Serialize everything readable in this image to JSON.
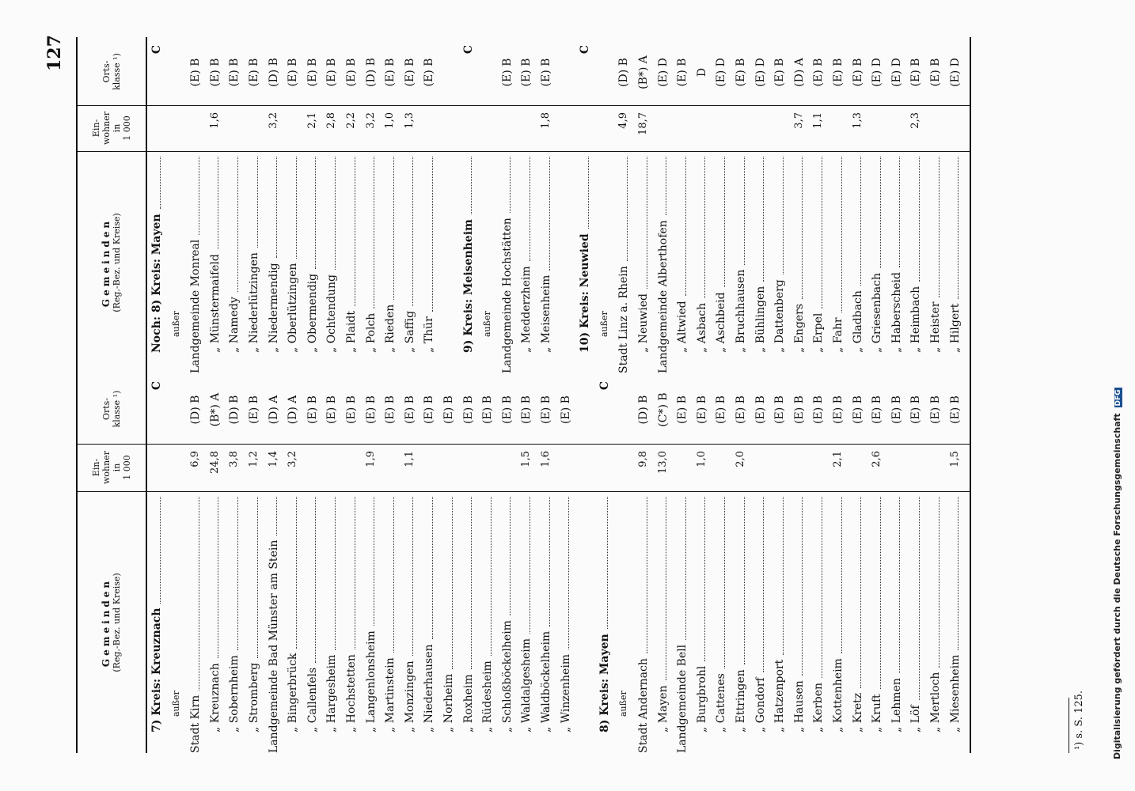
{
  "page_number": "127",
  "header": {
    "gemeinden": "Gemeinden",
    "gemeinden_sub": "(Reg.-Bez. und Kreise)",
    "einwohner": "Ein-\nwohner\nin\n1 000",
    "ortsklasse": "Orts-\nklasse ¹)"
  },
  "left_table": [
    {
      "name": "7) Kreis: Kreuznach",
      "pop": "",
      "klass": "C",
      "style": "kreis"
    },
    {
      "name": "außer",
      "pop": "",
      "klass": "",
      "style": "ausser"
    },
    {
      "name": "Stadt Kirn",
      "pop": "6,9",
      "klass": "(D) B",
      "style": "top"
    },
    {
      "name": "„ Kreuznach",
      "pop": "24,8",
      "klass": "(B*) A",
      "style": "sub"
    },
    {
      "name": "„ Sobernheim",
      "pop": "3,8",
      "klass": "(D) B",
      "style": "sub"
    },
    {
      "name": "„ Stromberg",
      "pop": "1,2",
      "klass": "(E) B",
      "style": "sub"
    },
    {
      "name": "Landgemeinde Bad Münster am Stein",
      "pop": "1,4",
      "klass": "(D) A",
      "style": "top"
    },
    {
      "name": "„ Bingerbrück",
      "pop": "3,2",
      "klass": "(D) A",
      "style": "sub2"
    },
    {
      "name": "„ Callenfels",
      "pop": "",
      "klass": "(E) B",
      "style": "sub2"
    },
    {
      "name": "„ Hargesheim",
      "pop": "",
      "klass": "(E) B",
      "style": "sub2"
    },
    {
      "name": "„ Hochstetten",
      "pop": "",
      "klass": "(E) B",
      "style": "sub2"
    },
    {
      "name": "„ Langenlonsheim",
      "pop": "1,9",
      "klass": "(E) B",
      "style": "sub2"
    },
    {
      "name": "„ Martinstein",
      "pop": "",
      "klass": "(E) B",
      "style": "sub2"
    },
    {
      "name": "„ Monzingen",
      "pop": "1,1",
      "klass": "(E) B",
      "style": "sub2"
    },
    {
      "name": "„ Niederhausen",
      "pop": "",
      "klass": "(E) B",
      "style": "sub2"
    },
    {
      "name": "„ Norheim",
      "pop": "",
      "klass": "(E) B",
      "style": "sub2"
    },
    {
      "name": "„ Roxheim",
      "pop": "",
      "klass": "(E) B",
      "style": "sub2"
    },
    {
      "name": "„ Rüdesheim",
      "pop": "",
      "klass": "(E) B",
      "style": "sub2"
    },
    {
      "name": "„ Schloßböckelheim",
      "pop": "",
      "klass": "(E) B",
      "style": "sub2"
    },
    {
      "name": "„ Waldalgesheim",
      "pop": "1,5",
      "klass": "(E) B",
      "style": "sub2"
    },
    {
      "name": "„ Waldböckelheim",
      "pop": "1,6",
      "klass": "(E) B",
      "style": "sub2"
    },
    {
      "name": "„ Winzenheim",
      "pop": "",
      "klass": "(E) B",
      "style": "sub2"
    },
    {
      "name": "",
      "pop": "",
      "klass": "",
      "style": "blank"
    },
    {
      "name": "8) Kreis: Mayen",
      "pop": "",
      "klass": "C",
      "style": "kreis"
    },
    {
      "name": "außer",
      "pop": "",
      "klass": "",
      "style": "ausser"
    },
    {
      "name": "Stadt Andernach",
      "pop": "9,8",
      "klass": "(D) B",
      "style": "top"
    },
    {
      "name": "„ Mayen",
      "pop": "13,0",
      "klass": "(C*) B",
      "style": "sub"
    },
    {
      "name": "Landgemeinde Bell",
      "pop": "",
      "klass": "(E) B",
      "style": "top"
    },
    {
      "name": "„ Burgbrohl",
      "pop": "1,0",
      "klass": "(E) B",
      "style": "sub2"
    },
    {
      "name": "„ Cattenes",
      "pop": "",
      "klass": "(E) B",
      "style": "sub2"
    },
    {
      "name": "„ Ettringen",
      "pop": "2,0",
      "klass": "(E) B",
      "style": "sub2"
    },
    {
      "name": "„ Gondorf",
      "pop": "",
      "klass": "(E) B",
      "style": "sub2"
    },
    {
      "name": "„ Hatzenport",
      "pop": "",
      "klass": "(E) B",
      "style": "sub2"
    },
    {
      "name": "„ Hausen",
      "pop": "",
      "klass": "(E) B",
      "style": "sub2"
    },
    {
      "name": "„ Kerben",
      "pop": "",
      "klass": "(E) B",
      "style": "sub2"
    },
    {
      "name": "„ Kottenheim",
      "pop": "2,1",
      "klass": "(E) B",
      "style": "sub2"
    },
    {
      "name": "„ Kretz",
      "pop": "",
      "klass": "(E) B",
      "style": "sub2"
    },
    {
      "name": "„ Kruft",
      "pop": "2,6",
      "klass": "(E) B",
      "style": "sub2"
    },
    {
      "name": "„ Lehmen",
      "pop": "",
      "klass": "(E) B",
      "style": "sub2"
    },
    {
      "name": "„ Löf",
      "pop": "",
      "klass": "(E) B",
      "style": "sub2"
    },
    {
      "name": "„ Mertloch",
      "pop": "",
      "klass": "(E) B",
      "style": "sub2"
    },
    {
      "name": "„ Miesenheim",
      "pop": "1,5",
      "klass": "(E) B",
      "style": "sub2"
    }
  ],
  "right_table": [
    {
      "name": "Noch: 8) Kreis: Mayen",
      "pop": "",
      "klass": "C",
      "style": "kreis"
    },
    {
      "name": "außer",
      "pop": "",
      "klass": "",
      "style": "ausser"
    },
    {
      "name": "Landgemeinde Monreal",
      "pop": "",
      "klass": "(E) B",
      "style": "top"
    },
    {
      "name": "„ Münstermaifeld",
      "pop": "1,6",
      "klass": "(E) B",
      "style": "sub2"
    },
    {
      "name": "„ Namedy",
      "pop": "",
      "klass": "(E) B",
      "style": "sub2"
    },
    {
      "name": "„ Niederlützingen",
      "pop": "",
      "klass": "(E) B",
      "style": "sub2"
    },
    {
      "name": "„ Niedermendig",
      "pop": "3,2",
      "klass": "(D) B",
      "style": "sub2"
    },
    {
      "name": "„ Oberlützingen",
      "pop": "",
      "klass": "(E) B",
      "style": "sub2"
    },
    {
      "name": "„ Obermendig",
      "pop": "2,1",
      "klass": "(E) B",
      "style": "sub2"
    },
    {
      "name": "„ Ochtendung",
      "pop": "2,8",
      "klass": "(E) B",
      "style": "sub2"
    },
    {
      "name": "„ Plaidt",
      "pop": "2,2",
      "klass": "(E) B",
      "style": "sub2"
    },
    {
      "name": "„ Polch",
      "pop": "3,2",
      "klass": "(D) B",
      "style": "sub2"
    },
    {
      "name": "„ Rieden",
      "pop": "1,0",
      "klass": "(E) B",
      "style": "sub2"
    },
    {
      "name": "„ Saffig",
      "pop": "1,3",
      "klass": "(E) B",
      "style": "sub2"
    },
    {
      "name": "„ Thür",
      "pop": "",
      "klass": "(E) B",
      "style": "sub2"
    },
    {
      "name": "",
      "pop": "",
      "klass": "",
      "style": "blank"
    },
    {
      "name": "9) Kreis: Meisenheim",
      "pop": "",
      "klass": "C",
      "style": "kreis"
    },
    {
      "name": "außer",
      "pop": "",
      "klass": "",
      "style": "ausser"
    },
    {
      "name": "Landgemeinde Hochstätten",
      "pop": "",
      "klass": "(E) B",
      "style": "top"
    },
    {
      "name": "„ Medderzheim",
      "pop": "",
      "klass": "(E) B",
      "style": "sub2"
    },
    {
      "name": "„ Meisenheim",
      "pop": "1,8",
      "klass": "(E) B",
      "style": "sub2"
    },
    {
      "name": "",
      "pop": "",
      "klass": "",
      "style": "blank"
    },
    {
      "name": "10) Kreis: Neuwied",
      "pop": "",
      "klass": "C",
      "style": "kreis"
    },
    {
      "name": "außer",
      "pop": "",
      "klass": "",
      "style": "ausser"
    },
    {
      "name": "Stadt Linz a. Rhein",
      "pop": "4,9",
      "klass": "(D) B",
      "style": "top"
    },
    {
      "name": "„ Neuwied",
      "pop": "18,7",
      "klass": "(B*) A",
      "style": "sub"
    },
    {
      "name": "Landgemeinde Alberthofen",
      "pop": "",
      "klass": "(E) D",
      "style": "top"
    },
    {
      "name": "„ Altwied",
      "pop": "",
      "klass": "(E) B",
      "style": "sub2"
    },
    {
      "name": "„ Asbach",
      "pop": "",
      "klass": "D",
      "style": "sub2"
    },
    {
      "name": "„ Aschbeid",
      "pop": "",
      "klass": "(E) D",
      "style": "sub2"
    },
    {
      "name": "„ Bruchhausen",
      "pop": "",
      "klass": "(E) B",
      "style": "sub2"
    },
    {
      "name": "„ Bühlingen",
      "pop": "",
      "klass": "(E) D",
      "style": "sub2"
    },
    {
      "name": "„ Dattenberg",
      "pop": "",
      "klass": "(E) B",
      "style": "sub2"
    },
    {
      "name": "„ Engers",
      "pop": "3,7",
      "klass": "(D) A",
      "style": "sub2"
    },
    {
      "name": "„ Erpel",
      "pop": "1,1",
      "klass": "(E) B",
      "style": "sub2"
    },
    {
      "name": "„ Fahr",
      "pop": "",
      "klass": "(E) B",
      "style": "sub2"
    },
    {
      "name": "„ Gladbach",
      "pop": "1,3",
      "klass": "(E) B",
      "style": "sub2"
    },
    {
      "name": "„ Griesenbach",
      "pop": "",
      "klass": "(E) D",
      "style": "sub2"
    },
    {
      "name": "„ Haberscheid",
      "pop": "",
      "klass": "(E) D",
      "style": "sub2"
    },
    {
      "name": "„ Heimbach",
      "pop": "2,3",
      "klass": "(E) B",
      "style": "sub2"
    },
    {
      "name": "„ Heister",
      "pop": "",
      "klass": "(E) B",
      "style": "sub2"
    },
    {
      "name": "„ Hilgert",
      "pop": "",
      "klass": "(E) D",
      "style": "sub2"
    }
  ],
  "footnote": "¹) s. S. 125.",
  "digitization_note": "Digitalisierung gefördert durch die Deutsche Forschungsgemeinschaft",
  "dfg_logo_text": "DFG"
}
